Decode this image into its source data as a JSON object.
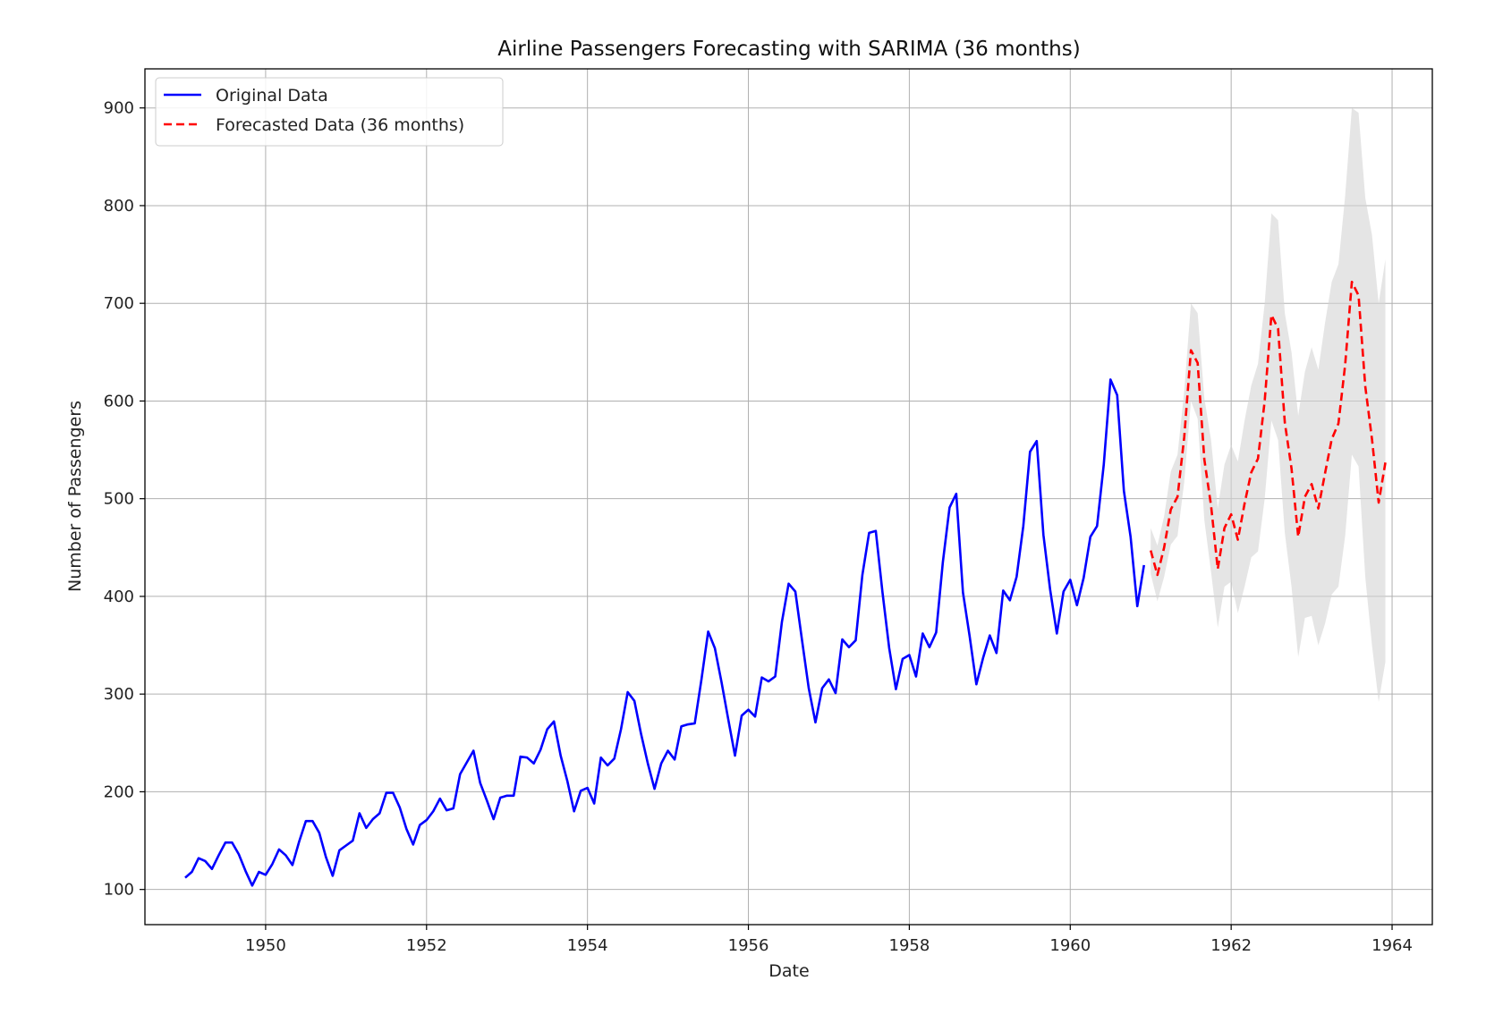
{
  "chart_data": {
    "type": "line",
    "title": "Airline Passengers Forecasting with SARIMA (36 months)",
    "xlabel": "Date",
    "ylabel": "Number of Passengers",
    "xlim": [
      1948.5,
      1964.5
    ],
    "ylim": [
      64,
      940
    ],
    "x_ticks": [
      1950,
      1952,
      1954,
      1956,
      1958,
      1960,
      1962,
      1964
    ],
    "x_tick_labels": [
      "1950",
      "1952",
      "1954",
      "1956",
      "1958",
      "1960",
      "1962",
      "1964"
    ],
    "y_ticks": [
      100,
      200,
      300,
      400,
      500,
      600,
      700,
      800,
      900
    ],
    "y_tick_labels": [
      "100",
      "200",
      "300",
      "400",
      "500",
      "600",
      "700",
      "800",
      "900"
    ],
    "grid": true,
    "legend_position": "top-left",
    "series": [
      {
        "name": "Original Data",
        "color": "#0000ff",
        "style": "solid",
        "start": "1949-01",
        "step": "1 month",
        "values": [
          112,
          118,
          132,
          129,
          121,
          135,
          148,
          148,
          136,
          119,
          104,
          118,
          115,
          126,
          141,
          135,
          125,
          149,
          170,
          170,
          158,
          133,
          114,
          140,
          145,
          150,
          178,
          163,
          172,
          178,
          199,
          199,
          184,
          162,
          146,
          166,
          171,
          180,
          193,
          181,
          183,
          218,
          230,
          242,
          209,
          191,
          172,
          194,
          196,
          196,
          236,
          235,
          229,
          243,
          264,
          272,
          237,
          211,
          180,
          201,
          204,
          188,
          235,
          227,
          234,
          264,
          302,
          293,
          259,
          229,
          203,
          229,
          242,
          233,
          267,
          269,
          270,
          315,
          364,
          347,
          312,
          274,
          237,
          278,
          284,
          277,
          317,
          313,
          318,
          374,
          413,
          405,
          355,
          306,
          271,
          306,
          315,
          301,
          356,
          348,
          355,
          422,
          465,
          467,
          404,
          347,
          305,
          336,
          340,
          318,
          362,
          348,
          363,
          435,
          491,
          505,
          404,
          359,
          310,
          337,
          360,
          342,
          406,
          396,
          420,
          472,
          548,
          559,
          463,
          407,
          362,
          405,
          417,
          391,
          419,
          461,
          472,
          535,
          622,
          606,
          508,
          461,
          390,
          432
        ]
      },
      {
        "name": "Forecasted Data (36 months)",
        "color": "#ff0000",
        "style": "dashed",
        "start": "1961-01",
        "step": "1 month",
        "values": [
          447,
          422,
          450,
          489,
          502,
          563,
          652,
          639,
          540,
          493,
          428,
          470,
          484,
          458,
          495,
          527,
          541,
          600,
          688,
          674,
          578,
          531,
          461,
          502,
          515,
          490,
          526,
          561,
          577,
          637,
          722,
          708,
          615,
          561,
          496,
          537
        ],
        "confidence_interval": {
          "color": "#d3d3d3",
          "lower": [
            423,
            395,
            420,
            453,
            462,
            517,
            600,
            582,
            478,
            425,
            368,
            410,
            415,
            383,
            410,
            440,
            446,
            500,
            580,
            560,
            465,
            410,
            338,
            378,
            380,
            350,
            372,
            402,
            410,
            462,
            545,
            533,
            420,
            350,
            292,
            333
          ],
          "upper": [
            470,
            452,
            482,
            528,
            545,
            610,
            700,
            690,
            603,
            560,
            490,
            535,
            555,
            538,
            580,
            616,
            638,
            700,
            792,
            785,
            690,
            650,
            585,
            630,
            655,
            632,
            680,
            722,
            740,
            810,
            900,
            895,
            808,
            770,
            700,
            745
          ]
        }
      }
    ]
  }
}
